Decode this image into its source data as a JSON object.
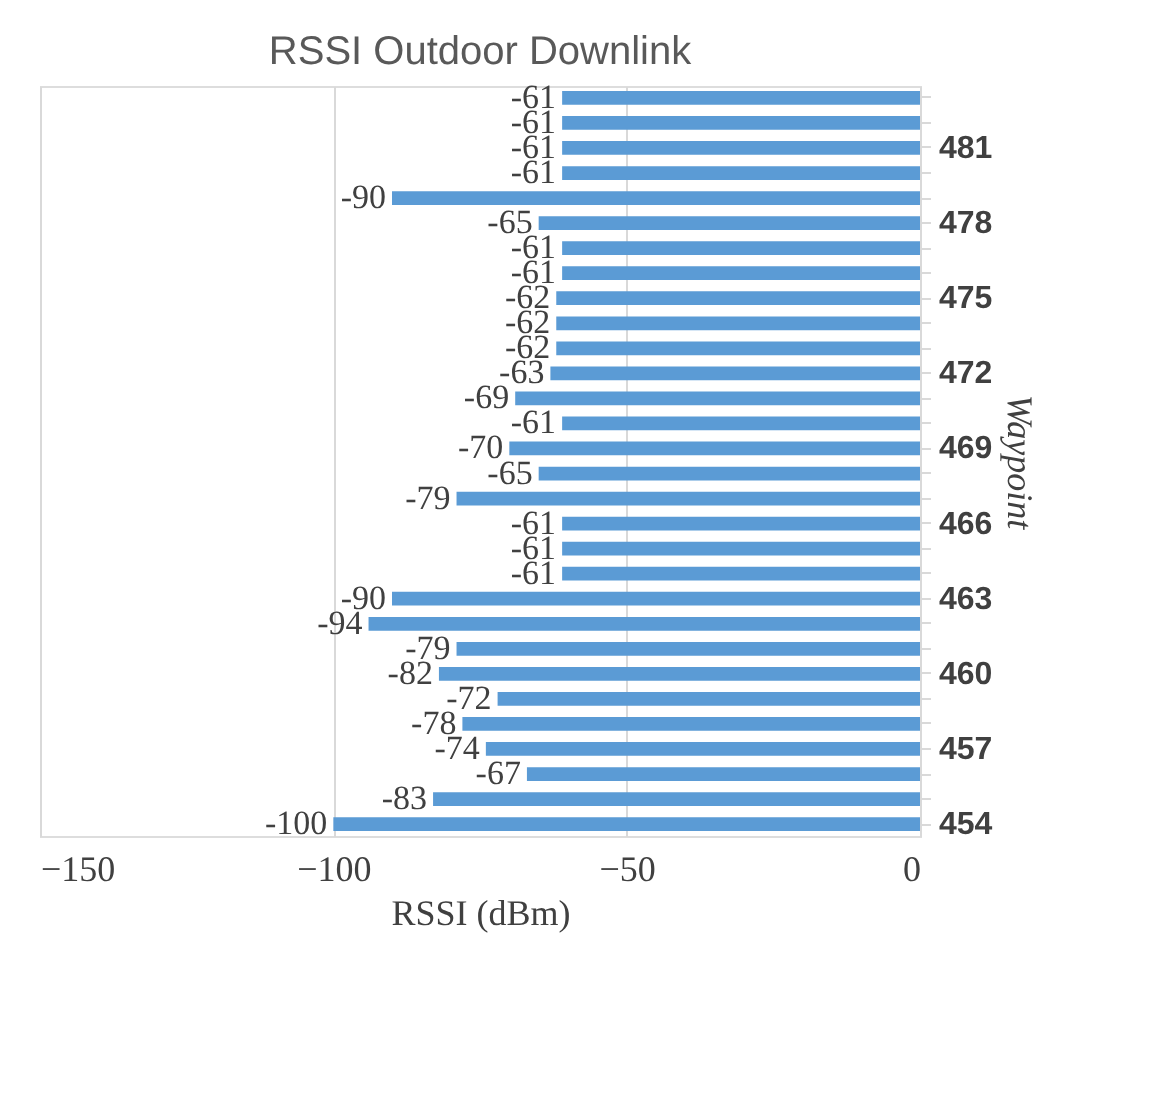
{
  "chart_data": {
    "type": "bar",
    "orientation": "horizontal",
    "title": "RSSI Outdoor Downlink",
    "xlabel": "RSSI (dBm)",
    "ylabel": "Waypoint",
    "categories": [
      null,
      null,
      "481",
      null,
      null,
      "478",
      null,
      null,
      "475",
      null,
      null,
      "472",
      null,
      null,
      "469",
      null,
      null,
      "466",
      null,
      null,
      "463",
      null,
      null,
      "460",
      null,
      null,
      "457",
      null,
      null,
      "454"
    ],
    "values": [
      -61,
      -61,
      -61,
      -61,
      -90,
      -65,
      -61,
      -61,
      -62,
      -62,
      -62,
      -63,
      -69,
      -61,
      -70,
      -65,
      -79,
      -61,
      -61,
      -61,
      -90,
      -94,
      -79,
      -82,
      -72,
      -78,
      -74,
      -67,
      -83,
      -100
    ],
    "color": "#5b9bd5",
    "xlim": [
      -150,
      0
    ],
    "xticks": [
      -150,
      -100,
      -50,
      0
    ],
    "grid": "x",
    "data_labels": true
  }
}
